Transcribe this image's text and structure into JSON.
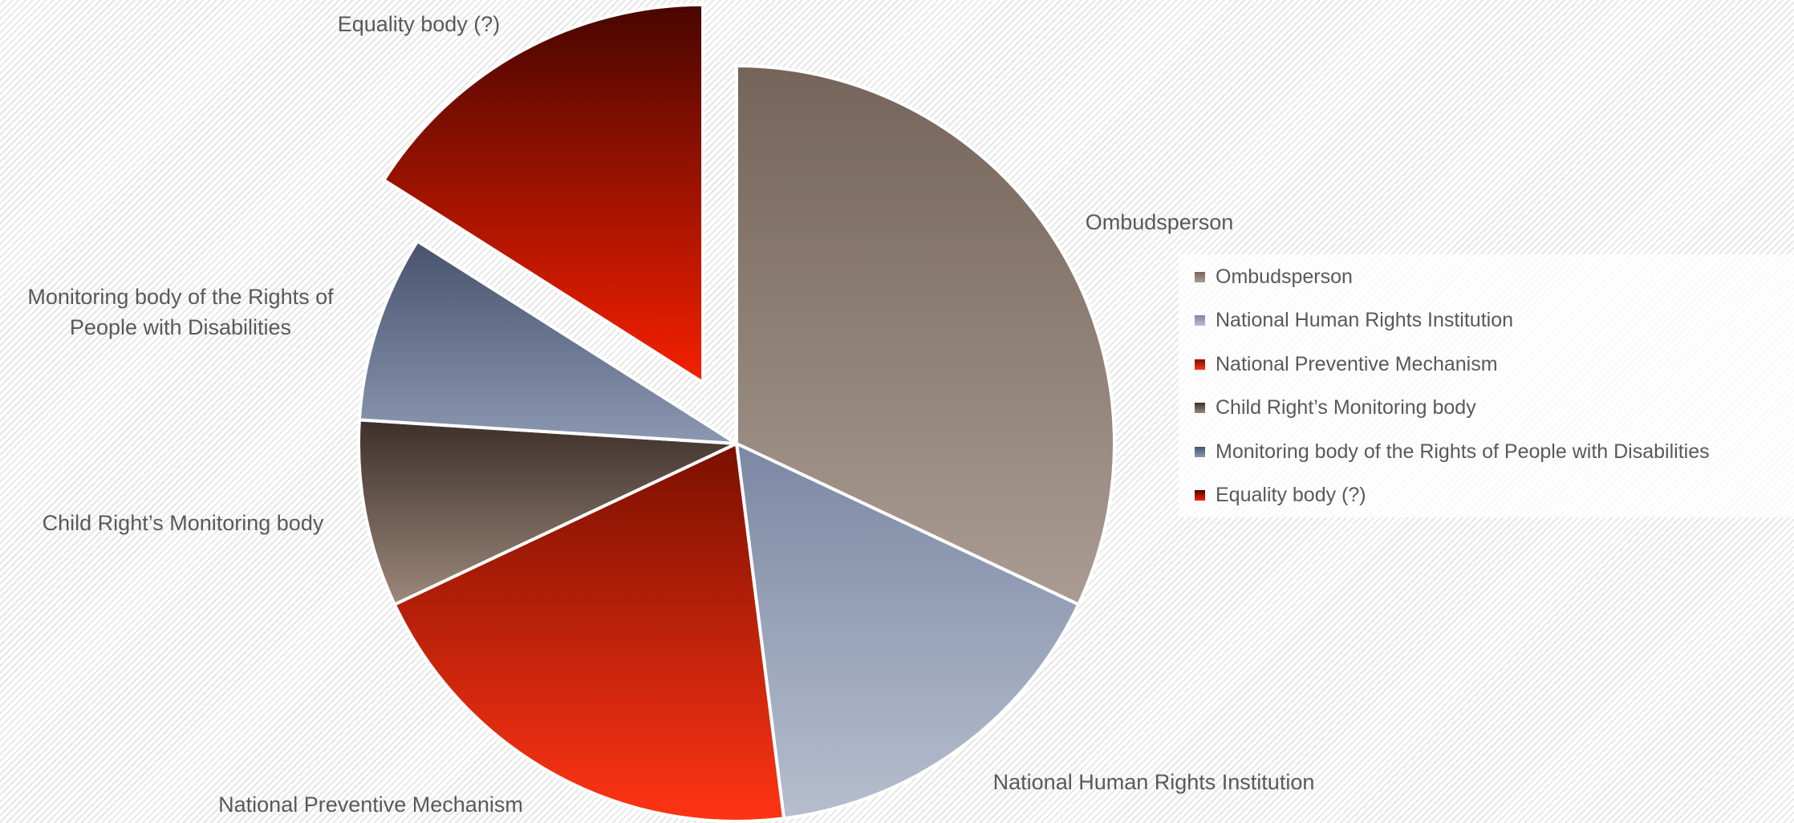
{
  "chart_data": {
    "type": "pie",
    "categories": [
      "Ombudsperson",
      "National Human Rights Institution",
      "National Preventive Mechanism",
      "Child Right’s Monitoring body",
      "Monitoring body of the Rights of People with Disabilities",
      "Equality body (?)"
    ],
    "values": [
      32,
      16,
      20,
      8,
      8,
      16
    ],
    "colors": [
      [
        "#74645a",
        "#aa9c92"
      ],
      [
        "#7c88a4",
        "#b6bece"
      ],
      [
        "#7a1000",
        "#ff3414"
      ],
      [
        "#3c302a",
        "#9c887a"
      ],
      [
        "#48546e",
        "#8c98b2"
      ],
      [
        "#480600",
        "#f62000"
      ]
    ],
    "exploded": [
      5
    ],
    "legend": "right"
  }
}
